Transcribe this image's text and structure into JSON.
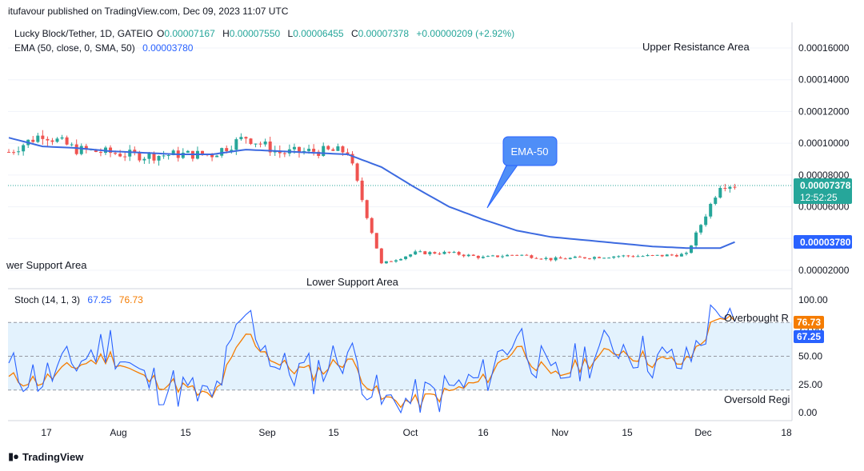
{
  "header": {
    "published": "itufavour published on TradingView.com, Dec 09, 2023 11:07 UTC"
  },
  "legend": {
    "symbol": "Lucky Block/Tether, 1D, GATEIO",
    "o_label": "O",
    "o_value": "0.00007167",
    "h_label": "H",
    "h_value": "0.00007550",
    "l_label": "L",
    "l_value": "0.00006455",
    "c_label": "C",
    "c_value": "0.00007378",
    "change": "+0.00000209 (+2.92%)",
    "ema_label": "EMA (50, close, 0, SMA, 50)",
    "ema_value": "0.00003780"
  },
  "stoch_legend": {
    "label": "Stoch (14, 1, 3)",
    "k_value": "67.25",
    "d_value": "76.73"
  },
  "annotations": {
    "upper_resistance": "Upper Resistance Area",
    "lower_support_left": "wer Support Area",
    "lower_support": "Lower Support Area",
    "ema_callout": "EMA-50",
    "overbought": "Overbought R",
    "oversold": "Oversold Regi"
  },
  "price_badges": {
    "last_price": "0.00007378",
    "countdown": "12:52:25",
    "ema_price": "0.00003780"
  },
  "footer": {
    "brand": "TradingView"
  },
  "colors": {
    "up": "#26a69a",
    "down": "#ef5350",
    "ema": "#3c6ae0",
    "stoch_k": "#2962ff",
    "stoch_d": "#f57c00",
    "band": "#e3f2fd",
    "last_badge": "#26a69a",
    "ema_badge": "#2962ff",
    "callout": "#4f8ef7"
  },
  "chart_data": [
    {
      "type": "candlestick",
      "title": "Lucky Block/Tether, 1D, GATEIO",
      "y_axis_ticks": [
        "0.00016000",
        "0.00014000",
        "0.00012000",
        "0.00010000",
        "0.00008000",
        "0.00006000",
        "0.00002000"
      ],
      "x_axis_ticks": [
        "17",
        "Aug",
        "15",
        "Sep",
        "15",
        "Oct",
        "16",
        "Nov",
        "15",
        "Dec",
        "18"
      ],
      "ylim": [
        1.4e-05,
        0.000168
      ],
      "x_range": [
        "2023-07-12",
        "2023-12-20"
      ],
      "dates": [
        "2023-07-12",
        "2023-07-19",
        "2023-07-26",
        "2023-08-02",
        "2023-08-09",
        "2023-08-16",
        "2023-08-23",
        "2023-08-30",
        "2023-09-06",
        "2023-09-13",
        "2023-09-20",
        "2023-09-27",
        "2023-10-04",
        "2023-10-11",
        "2023-10-18",
        "2023-10-25",
        "2023-11-01",
        "2023-11-08",
        "2023-11-15",
        "2023-11-22",
        "2023-11-29",
        "2023-12-06",
        "2023-12-09"
      ],
      "close": [
        9.45e-05,
        0.000106,
        9.6e-05,
        9.4e-05,
        9.2e-05,
        9.3e-05,
        9.3e-05,
        0.000104,
        9.4e-05,
        9.5e-05,
        9.5e-05,
        2.4e-05,
        3.1e-05,
        3.1e-05,
        2.8e-05,
        3e-05,
        2.7e-05,
        2.8e-05,
        2.9e-05,
        2.9e-05,
        3e-05,
        7.4e-05,
        7.378e-05
      ],
      "ema50": [
        0.0001035,
        9.8e-05,
        9.7e-05,
        9.5e-05,
        9.4e-05,
        9.3e-05,
        9.3e-05,
        9.6e-05,
        9.5e-05,
        9.4e-05,
        9.3e-05,
        8.5e-05,
        7.2e-05,
        6e-05,
        5.2e-05,
        4.5e-05,
        4.1e-05,
        3.9e-05,
        3.7e-05,
        3.5e-05,
        3.4e-05,
        3.4e-05,
        3.78e-05
      ],
      "series": [
        {
          "name": "Lucky Block/Tether",
          "last": 7.378e-05
        },
        {
          "name": "EMA (50, close, 0, SMA, 50)",
          "last": 3.78e-05
        }
      ]
    },
    {
      "type": "line",
      "title": "Stoch (14, 1, 3)",
      "y_axis_ticks": [
        "100.00",
        "75.00",
        "50.00",
        "25.00",
        "0.00"
      ],
      "ylim": [
        0,
        100
      ],
      "band": [
        20,
        80
      ],
      "x": [
        "2023-07-12",
        "2023-07-19",
        "2023-07-26",
        "2023-08-02",
        "2023-08-09",
        "2023-08-16",
        "2023-08-23",
        "2023-08-30",
        "2023-09-06",
        "2023-09-13",
        "2023-09-20",
        "2023-09-27",
        "2023-10-04",
        "2023-10-11",
        "2023-10-18",
        "2023-10-25",
        "2023-11-01",
        "2023-11-08",
        "2023-11-15",
        "2023-11-22",
        "2023-11-29",
        "2023-12-06",
        "2023-12-09"
      ],
      "series": [
        {
          "name": "%K",
          "values": [
            38,
            30,
            45,
            62,
            28,
            22,
            10,
            88,
            38,
            35,
            55,
            8,
            10,
            20,
            30,
            72,
            28,
            48,
            62,
            48,
            42,
            98,
            67.25
          ]
        },
        {
          "name": "%D",
          "values": [
            30,
            28,
            42,
            50,
            30,
            24,
            12,
            70,
            42,
            35,
            48,
            12,
            9,
            18,
            28,
            60,
            30,
            44,
            56,
            46,
            44,
            88,
            76.73
          ]
        }
      ]
    }
  ]
}
